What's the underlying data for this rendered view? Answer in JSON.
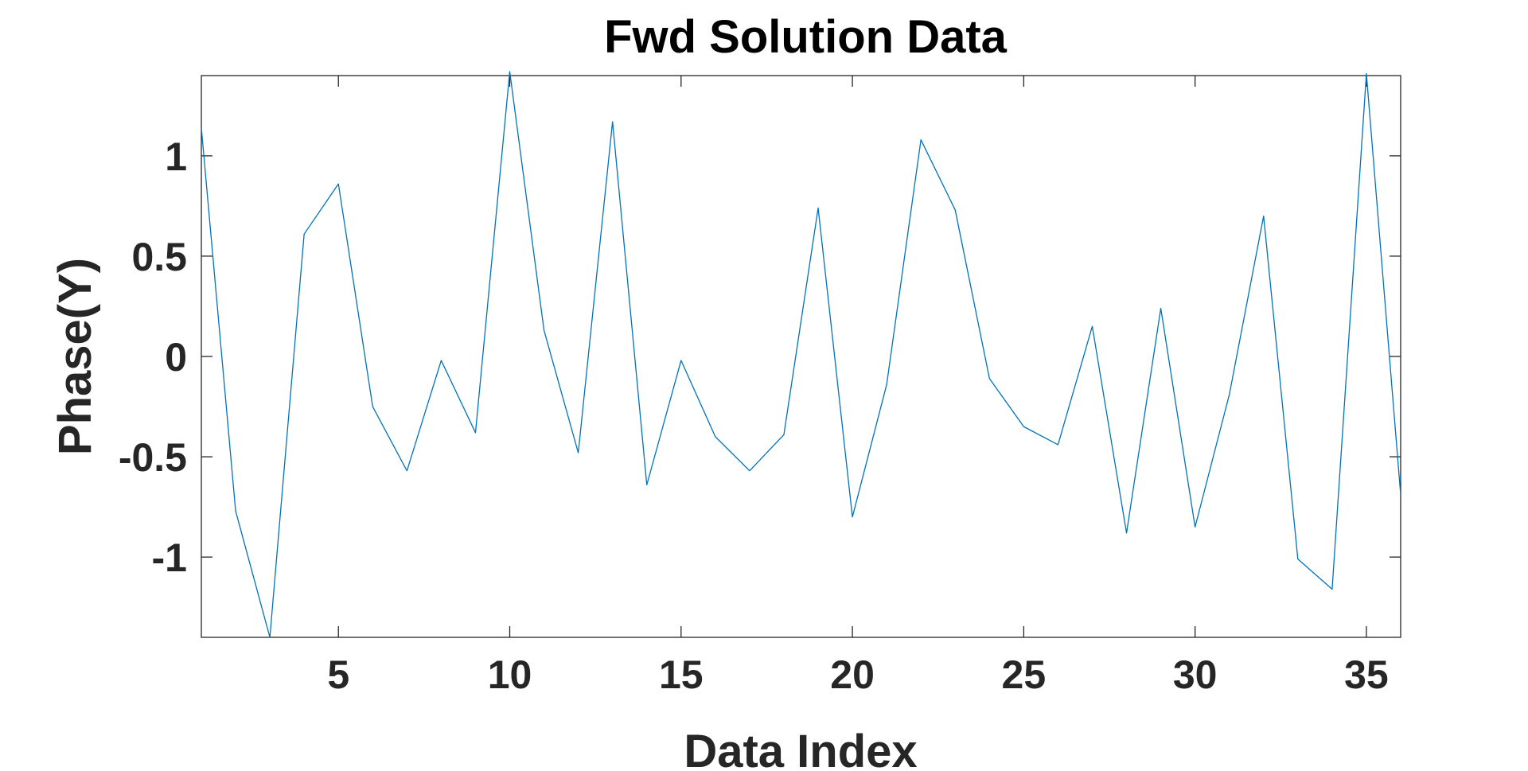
{
  "chart_data": {
    "type": "line",
    "title": "Fwd Solution Data",
    "xlabel": "Data Index",
    "ylabel": "Phase(Y)",
    "xlim": [
      1,
      36
    ],
    "ylim": [
      -1.4,
      1.4
    ],
    "xticks": [
      5,
      10,
      15,
      20,
      25,
      30,
      35
    ],
    "xtick_labels": [
      "5",
      "10",
      "15",
      "20",
      "25",
      "30",
      "35"
    ],
    "yticks": [
      -1,
      -0.5,
      0,
      0.5,
      1
    ],
    "ytick_labels": [
      "-1",
      "-0.5",
      "0",
      "0.5",
      "1"
    ],
    "grid": false,
    "line_color": "#0072BD",
    "series": [
      {
        "x": [
          1,
          2,
          3,
          4,
          5,
          6,
          7,
          8,
          9,
          10,
          11,
          12,
          13,
          14,
          15,
          16,
          17,
          18,
          19,
          20,
          21,
          22,
          23,
          24,
          25,
          26,
          27,
          28,
          29,
          30,
          31,
          32,
          33,
          34,
          35,
          36
        ],
        "values": [
          1.14,
          -0.77,
          -1.4,
          0.61,
          0.86,
          -0.25,
          -0.57,
          -0.02,
          -0.38,
          1.42,
          0.13,
          -0.48,
          1.17,
          -0.64,
          -0.02,
          -0.4,
          -0.57,
          -0.39,
          0.74,
          -0.8,
          -0.14,
          1.08,
          0.73,
          -0.11,
          -0.35,
          -0.44,
          0.15,
          -0.88,
          0.24,
          -0.85,
          -0.19,
          0.7,
          -1.01,
          -1.16,
          1.41,
          -0.69
        ]
      }
    ]
  }
}
